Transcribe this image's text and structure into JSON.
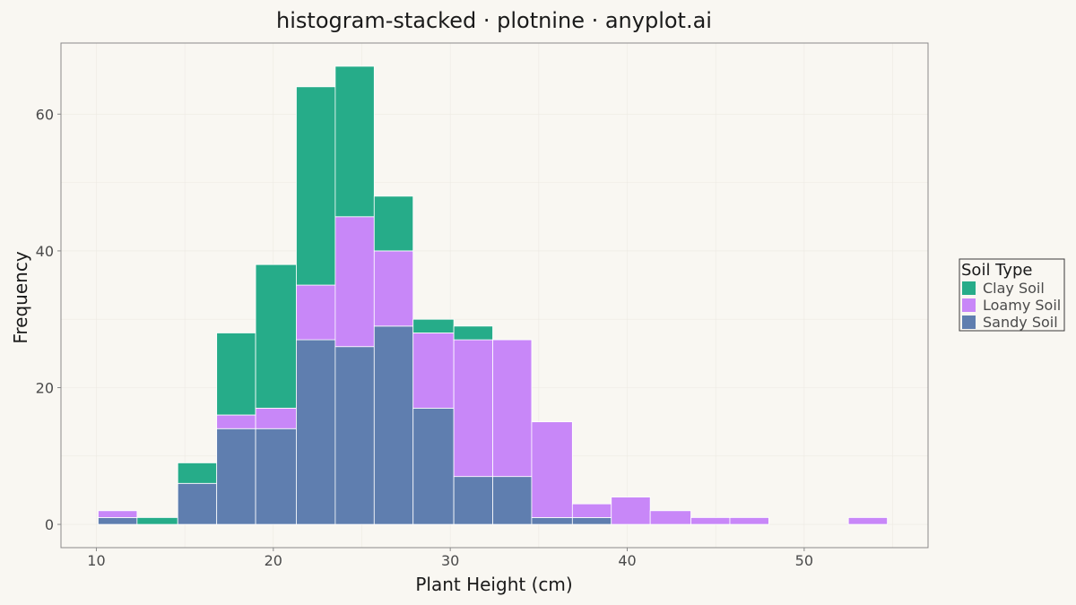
{
  "chart_data": {
    "type": "bar",
    "subtype": "stacked-histogram",
    "title": "histogram-stacked · plotnine · anyplot.ai",
    "xlabel": "Plant Height (cm)",
    "ylabel": "Frequency",
    "xlim": [
      8,
      57
    ],
    "ylim": [
      -3.4,
      70.4
    ],
    "xticks": [
      10,
      20,
      30,
      40,
      50
    ],
    "yticks": [
      0,
      20,
      40,
      60
    ],
    "grid": true,
    "legend": {
      "title": "Soil Type",
      "position": "right"
    },
    "bins": [
      [
        10.1,
        12.3
      ],
      [
        12.3,
        14.6
      ],
      [
        14.6,
        16.8
      ],
      [
        16.8,
        19.0
      ],
      [
        19.0,
        21.3
      ],
      [
        21.3,
        23.5
      ],
      [
        23.5,
        25.7
      ],
      [
        25.7,
        27.9
      ],
      [
        27.9,
        30.2
      ],
      [
        30.2,
        32.4
      ],
      [
        32.4,
        34.6
      ],
      [
        34.6,
        36.9
      ],
      [
        36.9,
        39.1
      ],
      [
        39.1,
        41.3
      ],
      [
        41.3,
        43.6
      ],
      [
        43.6,
        45.8
      ],
      [
        45.8,
        48.0
      ],
      [
        48.0,
        50.3
      ],
      [
        50.3,
        52.5
      ],
      [
        52.5,
        54.7
      ]
    ],
    "stack_order": [
      "Sandy Soil",
      "Loamy Soil",
      "Clay Soil"
    ],
    "series": [
      {
        "name": "Clay Soil",
        "color": "#26AC89",
        "values": [
          0,
          1,
          3,
          12,
          21,
          29,
          22,
          8,
          2,
          2,
          0,
          0,
          0,
          0,
          0,
          0,
          0,
          0,
          0,
          0
        ]
      },
      {
        "name": "Loamy Soil",
        "color": "#C887F8",
        "values": [
          1,
          0,
          0,
          2,
          3,
          8,
          19,
          11,
          11,
          20,
          20,
          14,
          2,
          4,
          2,
          1,
          1,
          0,
          0,
          1
        ]
      },
      {
        "name": "Sandy Soil",
        "color": "#5F7EAF",
        "values": [
          1,
          0,
          6,
          14,
          14,
          27,
          26,
          29,
          17,
          7,
          7,
          1,
          1,
          0,
          0,
          0,
          0,
          0,
          0,
          0
        ]
      }
    ]
  }
}
